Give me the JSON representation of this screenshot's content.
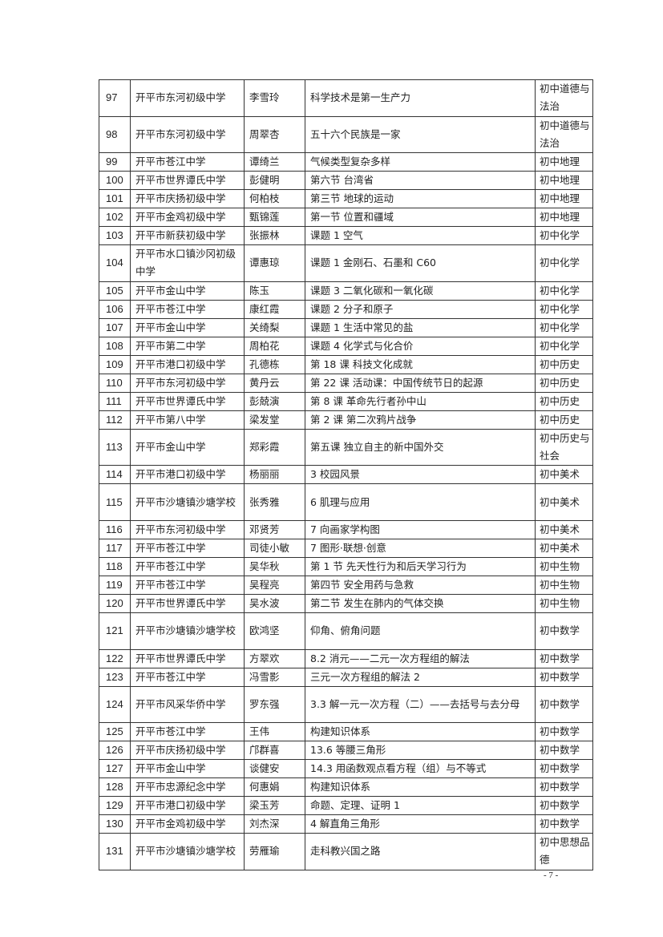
{
  "rows": [
    {
      "no": "97",
      "school": "开平市东河初级中学",
      "teacher": "李雪玲",
      "title": "科学技术是第一生产力",
      "subject": "初中道德与法治",
      "tall": true
    },
    {
      "no": "98",
      "school": "开平市东河初级中学",
      "teacher": "周翠杏",
      "title": "五十六个民族是一家",
      "subject": "初中道德与法治",
      "tall": true
    },
    {
      "no": "99",
      "school": "开平市苍江中学",
      "teacher": "谭绮兰",
      "title": "气候类型复杂多样",
      "subject": "初中地理"
    },
    {
      "no": "100",
      "school": "开平市世界谭氏中学",
      "teacher": "彭健明",
      "title": "第六节 台湾省",
      "subject": "初中地理"
    },
    {
      "no": "101",
      "school": "开平市庆扬初级中学",
      "teacher": "何柏枝",
      "title": "第三节 地球的运动",
      "subject": "初中地理"
    },
    {
      "no": "102",
      "school": "开平市金鸡初级中学",
      "teacher": "甄锦莲",
      "title": "第一节 位置和疆域",
      "subject": "初中地理"
    },
    {
      "no": "103",
      "school": "开平市新获初级中学",
      "teacher": "张振林",
      "title": "课题 1 空气",
      "subject": "初中化学"
    },
    {
      "no": "104",
      "school": "开平市水口镇沙冈初级中学",
      "teacher": "谭惠琼",
      "title": "课题 1 金刚石、石墨和 C60",
      "subject": "初中化学",
      "tall": true
    },
    {
      "no": "105",
      "school": "开平市金山中学",
      "teacher": "陈玉",
      "title": "课题 3 二氧化碳和一氧化碳",
      "subject": "初中化学"
    },
    {
      "no": "106",
      "school": "开平市苍江中学",
      "teacher": "康红霞",
      "title": "课题 2 分子和原子",
      "subject": "初中化学"
    },
    {
      "no": "107",
      "school": "开平市金山中学",
      "teacher": "关绮梨",
      "title": "课题 1 生活中常见的盐",
      "subject": "初中化学"
    },
    {
      "no": "108",
      "school": "开平市第二中学",
      "teacher": "周柏花",
      "title": "课题 4 化学式与化合价",
      "subject": "初中化学"
    },
    {
      "no": "109",
      "school": "开平市港口初级中学",
      "teacher": "孔德栋",
      "title": "第 18 课 科技文化成就",
      "subject": "初中历史"
    },
    {
      "no": "110",
      "school": "开平市东河初级中学",
      "teacher": "黄丹云",
      "title": "第 22 课 活动课：中国传统节日的起源",
      "subject": "初中历史"
    },
    {
      "no": "111",
      "school": "开平市世界谭氏中学",
      "teacher": "彭兢演",
      "title": "第 8 课 革命先行者孙中山",
      "subject": "初中历史"
    },
    {
      "no": "112",
      "school": "开平市第八中学",
      "teacher": "梁发堂",
      "title": "第 2 课 第二次鸦片战争",
      "subject": "初中历史"
    },
    {
      "no": "113",
      "school": "开平市金山中学",
      "teacher": "郑彩霞",
      "title": "第五课 独立自主的新中国外交",
      "subject": "初中历史与社会",
      "tall": true
    },
    {
      "no": "114",
      "school": "开平市港口初级中学",
      "teacher": "杨丽丽",
      "title": "3 校园风景",
      "subject": "初中美术"
    },
    {
      "no": "115",
      "school": "开平市沙塘镇沙塘学校",
      "teacher": "张秀雅",
      "title": "6 肌理与应用",
      "subject": "初中美术",
      "tall": true
    },
    {
      "no": "116",
      "school": "开平市东河初级中学",
      "teacher": "邓贤芳",
      "title": "7 向画家学构图",
      "subject": "初中美术"
    },
    {
      "no": "117",
      "school": "开平市苍江中学",
      "teacher": "司徒小敏",
      "title": "7 图形·联想·创意",
      "subject": "初中美术"
    },
    {
      "no": "118",
      "school": "开平市苍江中学",
      "teacher": "吴华秋",
      "title": "第 1 节 先天性行为和后天学习行为",
      "subject": "初中生物"
    },
    {
      "no": "119",
      "school": "开平市苍江中学",
      "teacher": "吴程亮",
      "title": "第四节 安全用药与急救",
      "subject": "初中生物"
    },
    {
      "no": "120",
      "school": "开平市世界谭氏中学",
      "teacher": "吴水波",
      "title": "第二节 发生在肺内的气体交换",
      "subject": "初中生物"
    },
    {
      "no": "121",
      "school": "开平市沙塘镇沙塘学校",
      "teacher": "欧鸿坚",
      "title": "仰角、俯角问题",
      "subject": "初中数学",
      "tall": true
    },
    {
      "no": "122",
      "school": "开平市世界谭氏中学",
      "teacher": "方翠欢",
      "title": "8.2 消元——二元一次方程组的解法",
      "subject": "初中数学"
    },
    {
      "no": "123",
      "school": "开平市苍江中学",
      "teacher": "冯雪影",
      "title": "三元一次方程组的解法 2",
      "subject": "初中数学"
    },
    {
      "no": "124",
      "school": "开平市风采华侨中学",
      "teacher": "罗东强",
      "title": "3.3 解一元一次方程（二）——去括号与去分母",
      "subject": "初中数学",
      "tall": true
    },
    {
      "no": "125",
      "school": "开平市苍江中学",
      "teacher": "王伟",
      "title": "构建知识体系",
      "subject": "初中数学"
    },
    {
      "no": "126",
      "school": "开平市庆扬初级中学",
      "teacher": "邝群喜",
      "title": "13.6 等腰三角形",
      "subject": "初中数学"
    },
    {
      "no": "127",
      "school": "开平市金山中学",
      "teacher": "谈健安",
      "title": "14.3 用函数观点看方程（组）与不等式",
      "subject": "初中数学"
    },
    {
      "no": "128",
      "school": "开平市忠源纪念中学",
      "teacher": "何惠娟",
      "title": "构建知识体系",
      "subject": "初中数学"
    },
    {
      "no": "129",
      "school": "开平市港口初级中学",
      "teacher": "梁玉芳",
      "title": "命题、定理、证明 1",
      "subject": "初中数学"
    },
    {
      "no": "130",
      "school": "开平市金鸡初级中学",
      "teacher": "刘杰深",
      "title": "4 解直角三角形",
      "subject": "初中数学"
    },
    {
      "no": "131",
      "school": "开平市沙塘镇沙塘学校",
      "teacher": "劳雁瑜",
      "title": "走科教兴国之路",
      "subject": "初中思想品德",
      "tall": true
    }
  ],
  "page_number": "- 7 -"
}
